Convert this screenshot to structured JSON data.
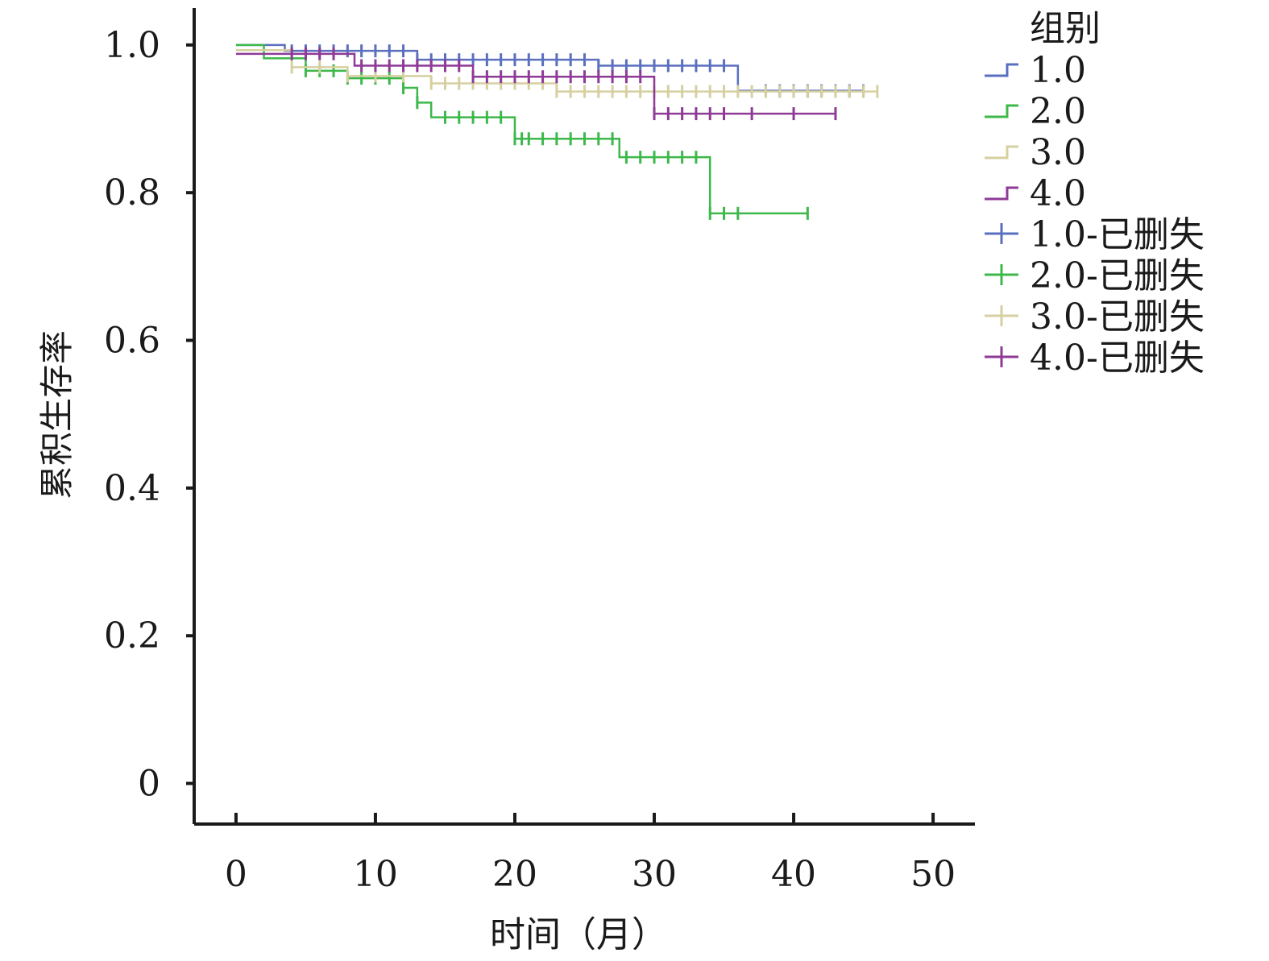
{
  "chart_data": {
    "type": "line",
    "subtype": "kaplan-meier-step",
    "xlabel": "时间（月）",
    "ylabel": "累积生存率",
    "xlim": [
      -3,
      53
    ],
    "ylim": [
      -0.055,
      1.05
    ],
    "x_ticks": [
      0,
      10,
      20,
      30,
      40,
      50
    ],
    "x_tick_labels": [
      "0",
      "10",
      "20",
      "30",
      "40",
      "50"
    ],
    "y_ticks": [
      0,
      0.2,
      0.4,
      0.6,
      0.8,
      1.0
    ],
    "y_tick_labels": [
      "0",
      "0.2",
      "0.4",
      "0.6",
      "0.8",
      "1.0"
    ],
    "legend_title": "组别",
    "legend_position": "top-right, outside plot",
    "series": [
      {
        "name": "1.0",
        "censor_label": "1.0-已删失",
        "color": "#5b6fbf",
        "steps": [
          [
            0,
            1.0
          ],
          [
            3.5,
            0.992
          ],
          [
            13,
            0.98
          ],
          [
            26,
            0.972
          ],
          [
            36,
            0.938
          ],
          [
            45,
            0.938
          ]
        ],
        "censored_x": [
          4,
          5,
          6,
          7,
          8,
          9,
          10,
          11,
          12,
          13,
          14,
          15,
          16,
          17,
          18,
          19,
          20,
          21,
          22,
          23,
          24,
          25,
          26,
          27,
          28,
          29,
          30,
          31,
          32,
          33,
          34,
          35,
          38,
          39,
          40,
          41,
          42,
          43,
          44,
          45
        ]
      },
      {
        "name": "2.0",
        "censor_label": "2.0-已删失",
        "color": "#3db84a",
        "steps": [
          [
            0,
            1.0
          ],
          [
            2,
            0.982
          ],
          [
            5,
            0.965
          ],
          [
            8,
            0.955
          ],
          [
            12,
            0.942
          ],
          [
            13,
            0.922
          ],
          [
            14,
            0.902
          ],
          [
            20,
            0.873
          ],
          [
            27.5,
            0.848
          ],
          [
            34,
            0.772
          ],
          [
            41,
            0.772
          ]
        ],
        "censored_x": [
          5,
          6,
          7,
          8,
          9,
          10,
          11,
          12,
          13,
          15,
          16,
          17,
          18,
          19,
          20,
          20.5,
          21,
          22,
          23,
          24,
          25,
          26,
          27,
          28,
          29,
          30,
          31,
          32,
          33,
          34,
          35,
          36,
          41
        ]
      },
      {
        "name": "3.0",
        "censor_label": "3.0-已删失",
        "color": "#d6d0a0",
        "steps": [
          [
            0,
            0.993
          ],
          [
            4,
            0.97
          ],
          [
            8,
            0.958
          ],
          [
            14,
            0.948
          ],
          [
            23,
            0.937
          ],
          [
            46,
            0.937
          ]
        ],
        "censored_x": [
          4,
          6,
          8,
          10,
          12,
          14,
          15,
          16,
          17,
          18,
          19,
          20,
          21,
          22,
          23,
          24,
          25,
          26,
          27,
          28,
          29,
          30,
          31,
          32,
          33,
          34,
          35,
          36,
          37,
          38,
          39,
          40,
          41,
          42,
          43,
          44,
          45,
          46
        ]
      },
      {
        "name": "4.0",
        "censor_label": "4.0-已删失",
        "color": "#8e3a96",
        "steps": [
          [
            0,
            0.988
          ],
          [
            8.5,
            0.972
          ],
          [
            17,
            0.957
          ],
          [
            30,
            0.907
          ],
          [
            43,
            0.907
          ]
        ],
        "censored_x": [
          4,
          5,
          6,
          7,
          9,
          10,
          11,
          12,
          13,
          14,
          15,
          16,
          17,
          18,
          19,
          20,
          21,
          22,
          23,
          24,
          25,
          26,
          27,
          28,
          29,
          30,
          31,
          32,
          33,
          34,
          35,
          37,
          40,
          43
        ]
      }
    ]
  }
}
